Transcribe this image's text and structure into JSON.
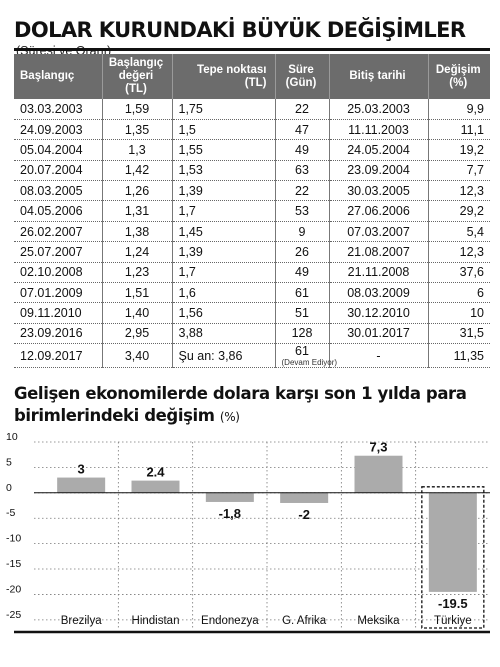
{
  "table": {
    "title": "DOLAR KURUNDAKİ BÜYÜK DEĞİŞİMLER",
    "subtitle": "(Süresi ve Oranı)",
    "headers": [
      "Başlangıç",
      "Başlangıç değeri (TL)",
      "Tepe noktası (TL)",
      "Süre (Gün)",
      "Bitiş tarihi",
      "Değişim (%)"
    ],
    "rows": [
      [
        "03.03.2003",
        "1,59",
        "1,75",
        "22",
        "25.03.2003",
        "9,9"
      ],
      [
        "24.09.2003",
        "1,35",
        "1,5",
        "47",
        "11.11.2003",
        "11,1"
      ],
      [
        "05.04.2004",
        "1,3",
        "1,55",
        "49",
        "24.05.2004",
        "19,2"
      ],
      [
        "20.07.2004",
        "1,42",
        "1,53",
        "63",
        "23.09.2004",
        "7,7"
      ],
      [
        "08.03.2005",
        "1,26",
        "1,39",
        "22",
        "30.03.2005",
        "12,3"
      ],
      [
        "04.05.2006",
        "1,31",
        "1,7",
        "53",
        "27.06.2006",
        "29,2"
      ],
      [
        "26.02.2007",
        "1,38",
        "1,45",
        "9",
        "07.03.2007",
        "5,4"
      ],
      [
        "25.07.2007",
        "1,24",
        "1,39",
        "26",
        "21.08.2007",
        "12,3"
      ],
      [
        "02.10.2008",
        "1,23",
        "1,7",
        "49",
        "21.11.2008",
        "37,6"
      ],
      [
        "07.01.2009",
        "1,51",
        "1,6",
        "61",
        "08.03.2009",
        "6"
      ],
      [
        "09.11.2010",
        "1,40",
        "1,56",
        "51",
        "30.12.2010",
        "10"
      ],
      [
        "23.09.2016",
        "2,95",
        "3,88",
        "128",
        "30.01.2017",
        "31,5"
      ],
      [
        "12.09.2017",
        "3,40",
        "Şu an: 3,86",
        "61",
        "-",
        "11,35"
      ]
    ],
    "last_row_note": "(Devam Ediyor)"
  },
  "chart_data": {
    "type": "bar",
    "title": "Gelişen ekonomilerde dolara karşı son 1 yılda para birimlerindeki değişim",
    "unit_label": "(%)",
    "categories": [
      "Brezilya",
      "Hindistan",
      "Endonezya",
      "G. Afrika",
      "Meksika",
      "Türkiye"
    ],
    "values": [
      3,
      2.4,
      -1.8,
      -2,
      7.3,
      -19.5
    ],
    "value_labels": [
      "3",
      "2.4",
      "-1,8",
      "-2",
      "7,3",
      "-19.5"
    ],
    "yticks": [
      10,
      5,
      0,
      -5,
      -10,
      -15,
      -20,
      -25
    ],
    "ylim": [
      -27,
      10
    ],
    "highlight": "Türkiye",
    "grid": true,
    "colors": {
      "bar": "#ababab",
      "axis": "#111111",
      "grid": "#777777"
    }
  }
}
